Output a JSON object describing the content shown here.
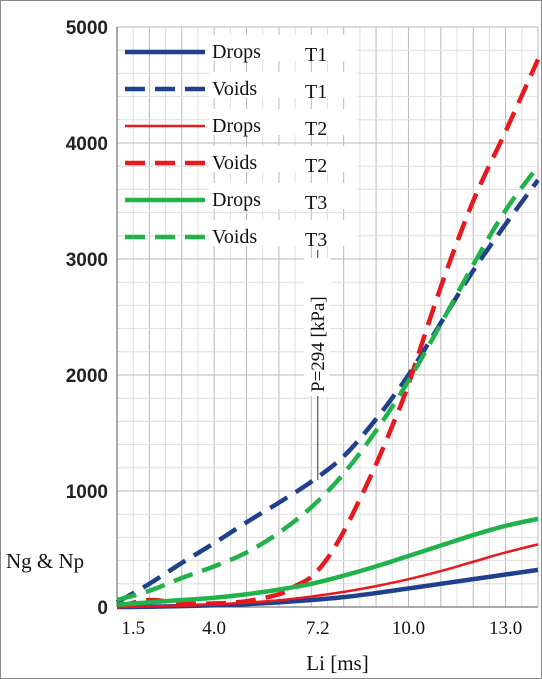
{
  "chart_data": {
    "type": "line",
    "title": "",
    "xlabel": "Li [ms]",
    "ylabel": "Ng & Np",
    "xlim": [
      1.0,
      14.0
    ],
    "ylim": [
      0,
      5000
    ],
    "xticks": [
      1.5,
      4.0,
      7.2,
      10.0,
      13.0
    ],
    "xtick_labels": [
      "1.5",
      "4.0",
      "7.2",
      "10.0",
      "13.0"
    ],
    "yticks": [
      0,
      1000,
      2000,
      3000,
      4000,
      5000
    ],
    "ytick_labels": [
      "0",
      "1000",
      "2000",
      "3000",
      "4000",
      "5000"
    ],
    "grid": true,
    "legend_position": "top-left",
    "annotation": {
      "text": "P=294 [kPa]",
      "x": 7.2
    },
    "series": [
      {
        "name": "Drops",
        "tag": "T1",
        "color": "#1f3f8f",
        "style": "solid",
        "width": "thick",
        "x": [
          1.0,
          2.0,
          3.0,
          4.0,
          5.0,
          6.0,
          7.0,
          8.0,
          9.0,
          10.0,
          11.0,
          12.0,
          13.0,
          14.0
        ],
        "y": [
          0,
          2,
          8,
          15,
          25,
          40,
          60,
          85,
          120,
          160,
          200,
          240,
          280,
          320
        ]
      },
      {
        "name": "Voids",
        "tag": "T1",
        "color": "#1f3f8f",
        "style": "dashed",
        "width": "thick",
        "x": [
          1.0,
          2.0,
          3.0,
          4.0,
          5.0,
          6.0,
          7.0,
          8.0,
          9.0,
          10.0,
          11.0,
          12.0,
          13.0,
          14.0
        ],
        "y": [
          40,
          200,
          380,
          550,
          730,
          900,
          1080,
          1300,
          1620,
          2000,
          2450,
          2900,
          3300,
          3680
        ]
      },
      {
        "name": "Drops",
        "tag": "T2",
        "color": "#e8191e",
        "style": "solid",
        "width": "thin",
        "x": [
          1.0,
          2.0,
          3.0,
          4.0,
          5.0,
          6.0,
          7.0,
          8.0,
          9.0,
          10.0,
          11.0,
          12.0,
          13.0,
          14.0
        ],
        "y": [
          0,
          5,
          12,
          22,
          38,
          58,
          90,
          130,
          180,
          240,
          310,
          390,
          470,
          540
        ]
      },
      {
        "name": "Voids",
        "tag": "T2",
        "color": "#e8191e",
        "style": "dashed",
        "width": "thick",
        "x": [
          1.0,
          2.0,
          3.0,
          4.0,
          5.0,
          6.0,
          6.5,
          7.0,
          7.5,
          8.0,
          8.5,
          9.0,
          9.5,
          10.0,
          11.0,
          12.0,
          13.0,
          14.0
        ],
        "y": [
          0,
          60,
          30,
          30,
          50,
          110,
          180,
          260,
          420,
          650,
          930,
          1230,
          1560,
          1920,
          2760,
          3500,
          4100,
          4720
        ]
      },
      {
        "name": "Drops",
        "tag": "T3",
        "color": "#21b24b",
        "style": "solid",
        "width": "thick",
        "x": [
          1.0,
          2.0,
          3.0,
          4.0,
          5.0,
          6.0,
          7.0,
          8.0,
          9.0,
          10.0,
          11.0,
          12.0,
          13.0,
          14.0
        ],
        "y": [
          20,
          40,
          60,
          80,
          110,
          150,
          200,
          270,
          350,
          440,
          530,
          620,
          700,
          760
        ]
      },
      {
        "name": "Voids",
        "tag": "T3",
        "color": "#21b24b",
        "style": "dashed",
        "width": "thick",
        "x": [
          1.0,
          2.0,
          3.0,
          4.0,
          5.0,
          6.0,
          7.0,
          8.0,
          9.0,
          10.0,
          11.0,
          12.0,
          13.0,
          14.0
        ],
        "y": [
          60,
          140,
          250,
          350,
          470,
          640,
          860,
          1150,
          1520,
          1950,
          2440,
          2950,
          3420,
          3800
        ]
      }
    ]
  }
}
